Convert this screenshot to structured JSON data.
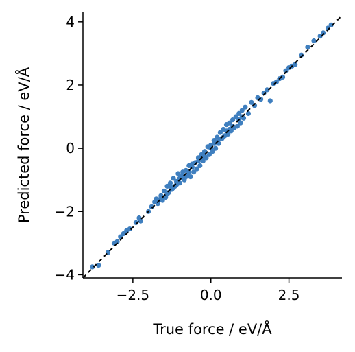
{
  "chart_data": {
    "type": "scatter",
    "xlabel": "True force / eV/Å",
    "ylabel": "Predicted force / eV/Å",
    "xlim": [
      -4.1,
      4.2
    ],
    "ylim": [
      -4.1,
      4.3
    ],
    "xticks": [
      -2.5,
      0.0,
      2.5
    ],
    "xtick_labels": [
      "−2.5",
      "0.0",
      "2.5"
    ],
    "yticks": [
      -4,
      -2,
      0,
      2,
      4
    ],
    "ytick_labels": [
      "−4",
      "−2",
      "0",
      "2",
      "4"
    ],
    "grid": false,
    "reference_line": {
      "style": "dashed",
      "color": "#000000",
      "from": [
        -4.1,
        -4.1
      ],
      "to": [
        4.2,
        4.2
      ]
    },
    "marker_color": "#3f7fbf",
    "points": [
      [
        -3.8,
        -3.75
      ],
      [
        -3.6,
        -3.7
      ],
      [
        -3.3,
        -3.3
      ],
      [
        -3.1,
        -3.0
      ],
      [
        -3.0,
        -2.95
      ],
      [
        -2.9,
        -2.8
      ],
      [
        -2.8,
        -2.7
      ],
      [
        -2.7,
        -2.6
      ],
      [
        -2.6,
        -2.55
      ],
      [
        -2.4,
        -2.35
      ],
      [
        -2.3,
        -2.2
      ],
      [
        -2.25,
        -2.3
      ],
      [
        -2.0,
        -2.0
      ],
      [
        -1.9,
        -1.85
      ],
      [
        -1.8,
        -1.7
      ],
      [
        -1.75,
        -1.6
      ],
      [
        -1.7,
        -1.75
      ],
      [
        -1.6,
        -1.5
      ],
      [
        -1.55,
        -1.65
      ],
      [
        -1.5,
        -1.35
      ],
      [
        -1.45,
        -1.55
      ],
      [
        -1.4,
        -1.2
      ],
      [
        -1.35,
        -1.4
      ],
      [
        -1.3,
        -1.1
      ],
      [
        -1.25,
        -1.3
      ],
      [
        -1.2,
        -0.95
      ],
      [
        -1.15,
        -1.2
      ],
      [
        -1.1,
        -1.05
      ],
      [
        -1.05,
        -0.8
      ],
      [
        -1.0,
        -1.1
      ],
      [
        -0.95,
        -0.9
      ],
      [
        -0.9,
        -0.75
      ],
      [
        -0.85,
        -1.0
      ],
      [
        -0.8,
        -0.7
      ],
      [
        -0.75,
        -0.85
      ],
      [
        -0.7,
        -0.55
      ],
      [
        -0.65,
        -0.9
      ],
      [
        -0.6,
        -0.5
      ],
      [
        -0.55,
        -0.75
      ],
      [
        -0.5,
        -0.45
      ],
      [
        -0.45,
        -0.65
      ],
      [
        -0.4,
        -0.3
      ],
      [
        -0.35,
        -0.55
      ],
      [
        -0.3,
        -0.2
      ],
      [
        -0.25,
        -0.4
      ],
      [
        -0.2,
        -0.1
      ],
      [
        -0.15,
        -0.3
      ],
      [
        -0.1,
        0.05
      ],
      [
        -0.05,
        -0.2
      ],
      [
        0.0,
        0.1
      ],
      [
        0.05,
        -0.1
      ],
      [
        0.1,
        0.25
      ],
      [
        0.15,
        0.0
      ],
      [
        0.2,
        0.35
      ],
      [
        0.25,
        0.15
      ],
      [
        0.3,
        0.5
      ],
      [
        0.35,
        0.3
      ],
      [
        0.4,
        0.6
      ],
      [
        0.45,
        0.4
      ],
      [
        0.5,
        0.75
      ],
      [
        0.55,
        0.45
      ],
      [
        0.6,
        0.8
      ],
      [
        0.65,
        0.55
      ],
      [
        0.7,
        0.9
      ],
      [
        0.75,
        0.65
      ],
      [
        0.8,
        1.0
      ],
      [
        0.85,
        0.7
      ],
      [
        0.9,
        1.1
      ],
      [
        0.95,
        0.8
      ],
      [
        1.0,
        1.2
      ],
      [
        1.05,
        0.95
      ],
      [
        1.1,
        1.3
      ],
      [
        1.2,
        1.1
      ],
      [
        1.3,
        1.45
      ],
      [
        1.4,
        1.35
      ],
      [
        1.5,
        1.6
      ],
      [
        1.6,
        1.55
      ],
      [
        1.7,
        1.75
      ],
      [
        1.8,
        1.85
      ],
      [
        1.9,
        1.5
      ],
      [
        2.0,
        2.05
      ],
      [
        2.1,
        2.1
      ],
      [
        2.2,
        2.2
      ],
      [
        2.3,
        2.25
      ],
      [
        2.4,
        2.45
      ],
      [
        2.5,
        2.55
      ],
      [
        2.6,
        2.6
      ],
      [
        2.7,
        2.65
      ],
      [
        2.9,
        2.95
      ],
      [
        3.1,
        3.2
      ],
      [
        3.3,
        3.4
      ],
      [
        3.5,
        3.55
      ],
      [
        3.6,
        3.65
      ],
      [
        3.75,
        3.8
      ],
      [
        3.85,
        3.9
      ],
      [
        -1.6,
        -1.55
      ],
      [
        -1.2,
        -1.25
      ],
      [
        -0.9,
        -0.85
      ],
      [
        -0.6,
        -0.6
      ],
      [
        -0.3,
        -0.3
      ],
      [
        0.0,
        0.0
      ],
      [
        0.3,
        0.3
      ],
      [
        0.6,
        0.6
      ],
      [
        0.9,
        0.9
      ],
      [
        -1.4,
        -1.45
      ],
      [
        -1.0,
        -0.95
      ],
      [
        -0.7,
        -0.75
      ],
      [
        -0.2,
        -0.25
      ],
      [
        0.2,
        0.2
      ],
      [
        0.5,
        0.55
      ],
      [
        -1.3,
        -1.2
      ],
      [
        -0.8,
        -0.9
      ],
      [
        -0.4,
        -0.4
      ],
      [
        0.1,
        0.15
      ],
      [
        0.4,
        0.35
      ],
      [
        0.7,
        0.7
      ],
      [
        1.0,
        1.0
      ],
      [
        -1.7,
        -1.65
      ],
      [
        -1.1,
        -1.15
      ]
    ]
  }
}
